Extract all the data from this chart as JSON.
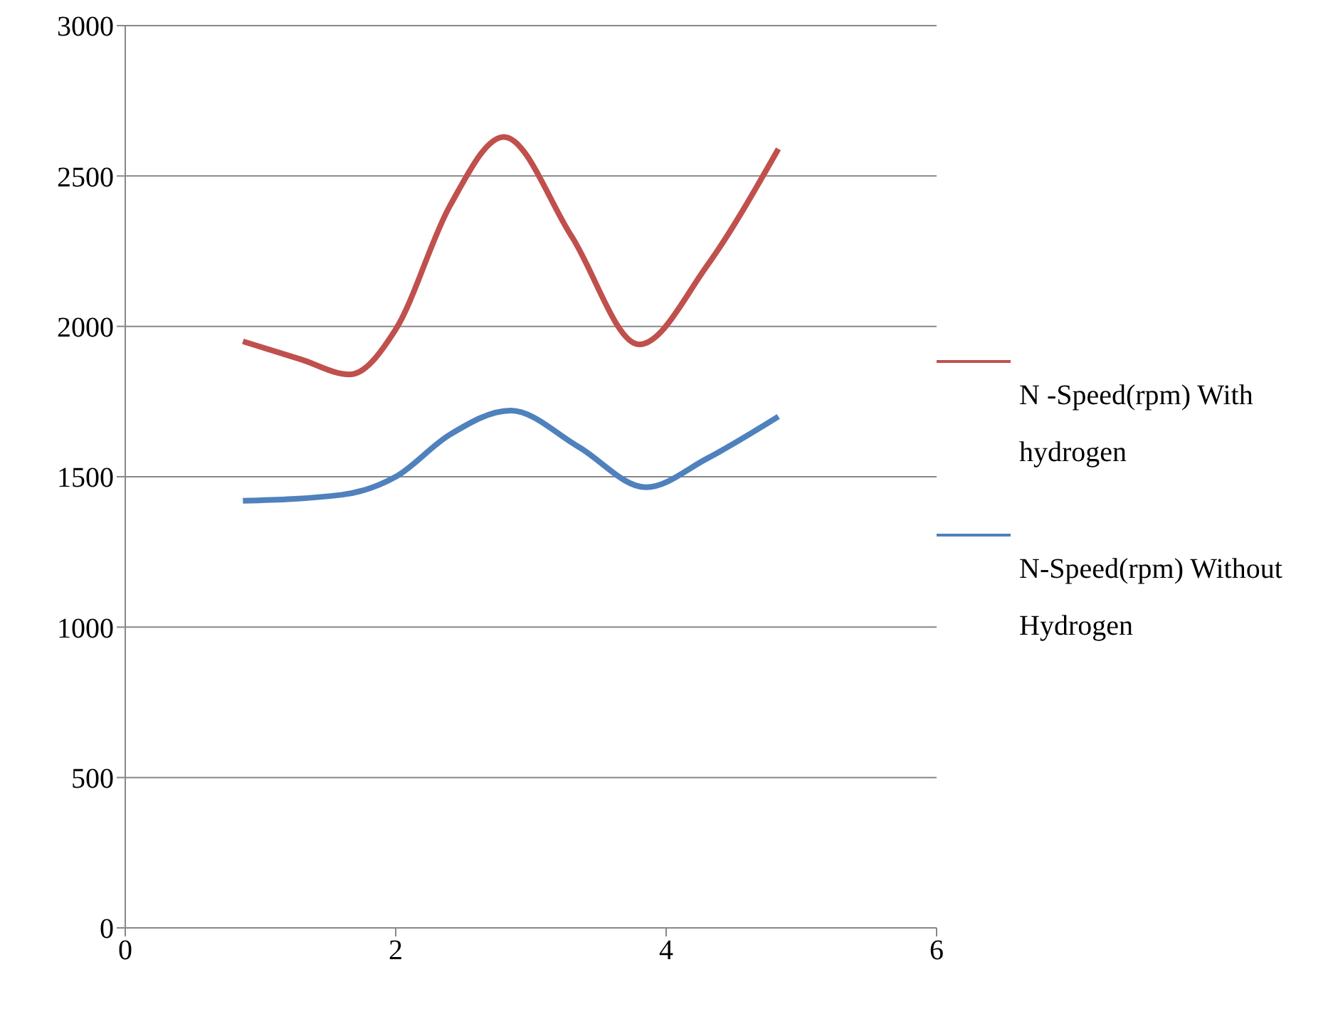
{
  "chart_data": {
    "type": "line",
    "xlim": [
      0,
      6
    ],
    "xticks": [
      0,
      2,
      4,
      6
    ],
    "ylim": [
      0,
      3000
    ],
    "yticks": [
      0,
      500,
      1000,
      1500,
      2000,
      2500,
      3000
    ],
    "grid": "y",
    "legend": "right",
    "marker": "none",
    "line_style": "solid",
    "series": [
      {
        "name": "N -Speed(rpm)  With hydrogen",
        "color": "#c0504d",
        "x": [
          0.87,
          1.3,
          1.66,
          2.0,
          2.4,
          2.8,
          3.3,
          3.8,
          4.3,
          4.83
        ],
        "values": [
          1950,
          1890,
          1840,
          1990,
          2400,
          2630,
          2300,
          1940,
          2200,
          2590
        ]
      },
      {
        "name": "N-Speed(rpm) Without Hydrogen",
        "color": "#4f81bd",
        "x": [
          0.87,
          1.6,
          2.0,
          2.4,
          2.85,
          3.35,
          3.85,
          4.3,
          4.83
        ],
        "values": [
          1420,
          1440,
          1500,
          1640,
          1720,
          1600,
          1465,
          1560,
          1700
        ]
      }
    ]
  }
}
